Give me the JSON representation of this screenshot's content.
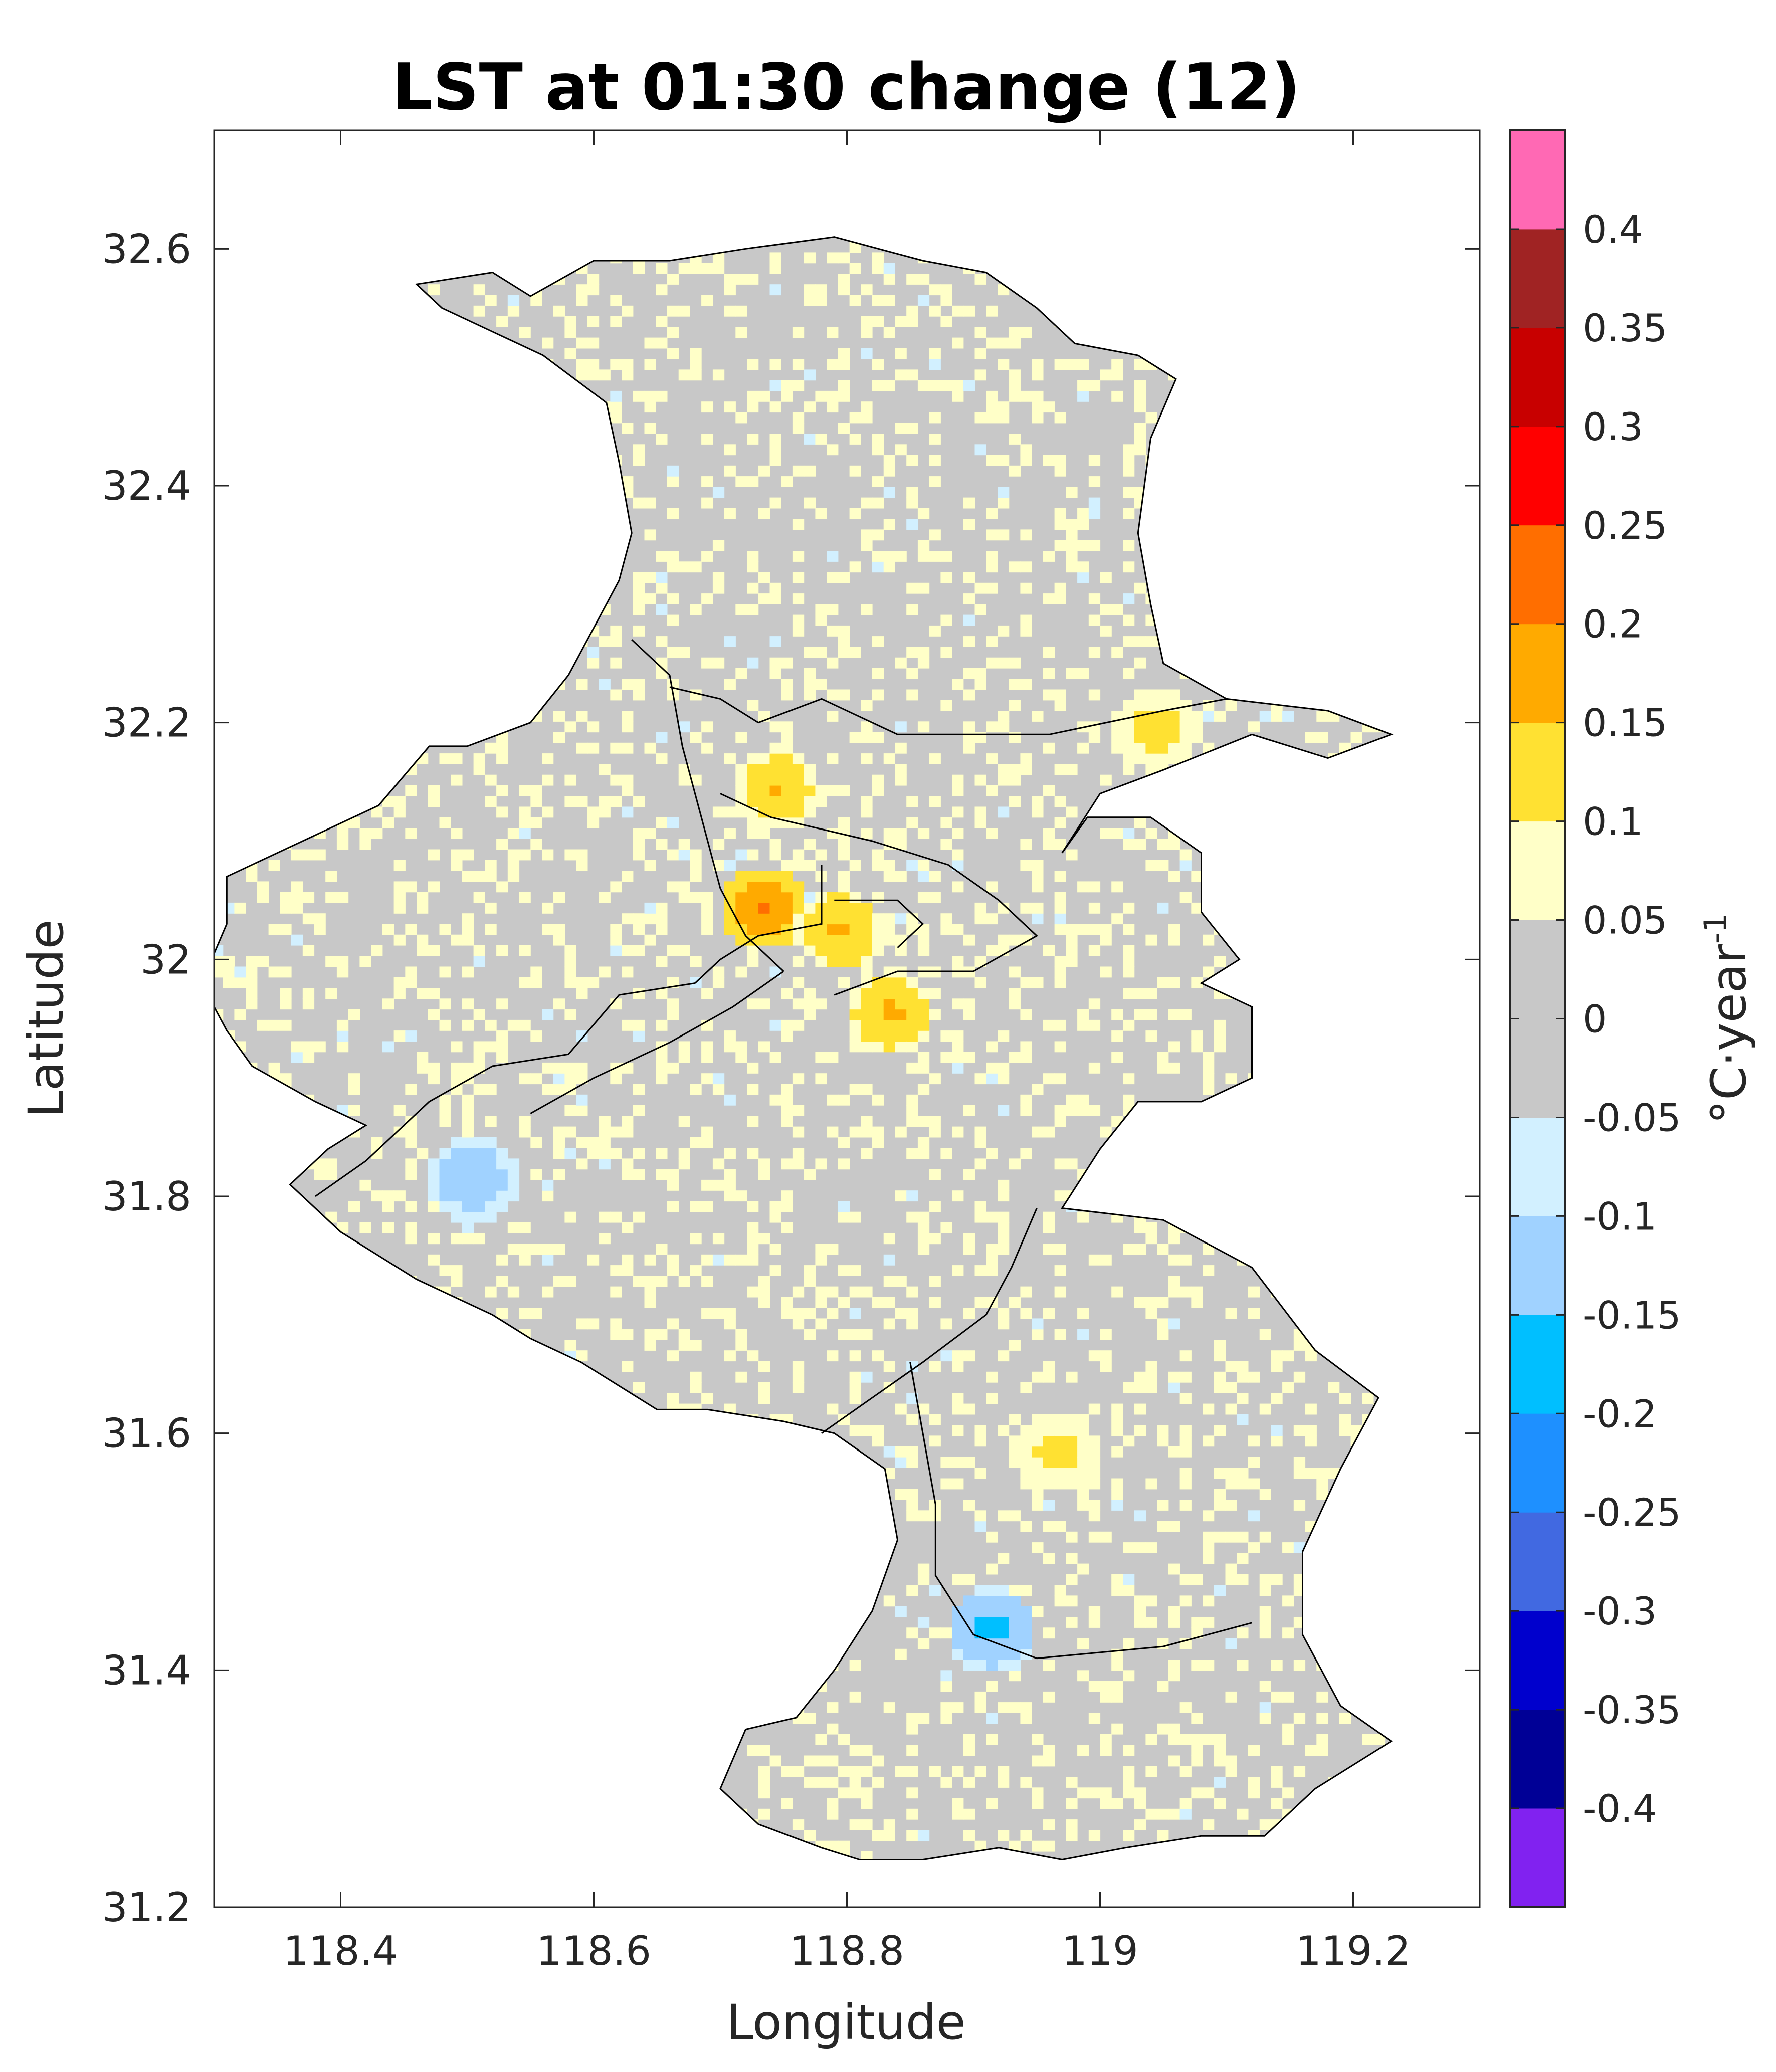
{
  "chart_data": {
    "type": "heatmap",
    "title": "LST at 01:30 change (12)",
    "xlabel": "Longitude",
    "ylabel": "Latitude",
    "xlim": [
      118.3,
      119.3
    ],
    "ylim": [
      31.2,
      32.7
    ],
    "xticks": [
      "118.4",
      "118.6",
      "118.8",
      "119",
      "119.2"
    ],
    "xtick_values": [
      118.4,
      118.6,
      118.8,
      119.0,
      119.2
    ],
    "yticks": [
      "31.2",
      "31.4",
      "31.6",
      "31.8",
      "32",
      "32.2",
      "32.4",
      "32.6"
    ],
    "ytick_values": [
      31.2,
      31.4,
      31.6,
      31.8,
      32.0,
      32.2,
      32.4,
      32.6
    ],
    "colorbar": {
      "label_main": "°C·year",
      "label_sup": "-1",
      "range": [
        -0.45,
        0.45
      ],
      "tick_labels": [
        "-0.4",
        "-0.35",
        "-0.3",
        "-0.25",
        "-0.2",
        "-0.15",
        "-0.1",
        "-0.05",
        "0",
        "0.05",
        "0.1",
        "0.15",
        "0.2",
        "0.25",
        "0.3",
        "0.35",
        "0.4"
      ],
      "tick_values": [
        -0.4,
        -0.35,
        -0.3,
        -0.25,
        -0.2,
        -0.15,
        -0.1,
        -0.05,
        0,
        0.05,
        0.1,
        0.15,
        0.2,
        0.25,
        0.3,
        0.35,
        0.4
      ],
      "bins": [
        {
          "from": -0.45,
          "to": -0.4,
          "color": "#8122F0"
        },
        {
          "from": -0.4,
          "to": -0.35,
          "color": "#000096"
        },
        {
          "from": -0.35,
          "to": -0.3,
          "color": "#0000CD"
        },
        {
          "from": -0.3,
          "to": -0.25,
          "color": "#4169E1"
        },
        {
          "from": -0.25,
          "to": -0.2,
          "color": "#1E90FF"
        },
        {
          "from": -0.2,
          "to": -0.15,
          "color": "#00BFFF"
        },
        {
          "from": -0.15,
          "to": -0.1,
          "color": "#A0D2FF"
        },
        {
          "from": -0.1,
          "to": -0.05,
          "color": "#D2F0FF"
        },
        {
          "from": -0.05,
          "to": 0.05,
          "color": "#C8C8C8"
        },
        {
          "from": 0.05,
          "to": 0.1,
          "color": "#FFFFC8"
        },
        {
          "from": 0.1,
          "to": 0.15,
          "color": "#FFE132"
        },
        {
          "from": 0.15,
          "to": 0.2,
          "color": "#FFAA00"
        },
        {
          "from": 0.2,
          "to": 0.25,
          "color": "#FF6E00"
        },
        {
          "from": 0.25,
          "to": 0.3,
          "color": "#FF0000"
        },
        {
          "from": 0.3,
          "to": 0.35,
          "color": "#C80000"
        },
        {
          "from": 0.35,
          "to": 0.4,
          "color": "#A02323"
        },
        {
          "from": 0.4,
          "to": 0.45,
          "color": "#FF69B4"
        }
      ]
    },
    "region_outline": [
      [
        118.46,
        32.57
      ],
      [
        118.52,
        32.58
      ],
      [
        118.55,
        32.56
      ],
      [
        118.6,
        32.59
      ],
      [
        118.66,
        32.59
      ],
      [
        118.72,
        32.6
      ],
      [
        118.79,
        32.61
      ],
      [
        118.86,
        32.59
      ],
      [
        118.91,
        32.58
      ],
      [
        118.95,
        32.55
      ],
      [
        118.98,
        32.52
      ],
      [
        119.03,
        32.51
      ],
      [
        119.06,
        32.49
      ],
      [
        119.04,
        32.44
      ],
      [
        119.03,
        32.36
      ],
      [
        119.04,
        32.3
      ],
      [
        119.05,
        32.25
      ],
      [
        119.1,
        32.22
      ],
      [
        119.18,
        32.21
      ],
      [
        119.23,
        32.19
      ],
      [
        119.18,
        32.17
      ],
      [
        119.12,
        32.19
      ],
      [
        119.05,
        32.16
      ],
      [
        119.0,
        32.14
      ],
      [
        118.97,
        32.09
      ],
      [
        118.99,
        32.12
      ],
      [
        119.04,
        32.12
      ],
      [
        119.08,
        32.09
      ],
      [
        119.08,
        32.04
      ],
      [
        119.11,
        32.0
      ],
      [
        119.08,
        31.98
      ],
      [
        119.12,
        31.96
      ],
      [
        119.12,
        31.9
      ],
      [
        119.08,
        31.88
      ],
      [
        119.03,
        31.88
      ],
      [
        119.0,
        31.84
      ],
      [
        118.97,
        31.79
      ],
      [
        119.05,
        31.78
      ],
      [
        119.12,
        31.74
      ],
      [
        119.17,
        31.67
      ],
      [
        119.22,
        31.63
      ],
      [
        119.19,
        31.57
      ],
      [
        119.16,
        31.5
      ],
      [
        119.16,
        31.43
      ],
      [
        119.19,
        31.37
      ],
      [
        119.23,
        31.34
      ],
      [
        119.17,
        31.3
      ],
      [
        119.13,
        31.26
      ],
      [
        119.08,
        31.26
      ],
      [
        119.02,
        31.25
      ],
      [
        118.97,
        31.24
      ],
      [
        118.92,
        31.25
      ],
      [
        118.86,
        31.24
      ],
      [
        118.81,
        31.24
      ],
      [
        118.78,
        31.25
      ],
      [
        118.73,
        31.27
      ],
      [
        118.7,
        31.3
      ],
      [
        118.72,
        31.35
      ],
      [
        118.76,
        31.36
      ],
      [
        118.79,
        31.4
      ],
      [
        118.82,
        31.45
      ],
      [
        118.84,
        31.51
      ],
      [
        118.83,
        31.57
      ],
      [
        118.79,
        31.6
      ],
      [
        118.75,
        31.61
      ],
      [
        118.69,
        31.62
      ],
      [
        118.65,
        31.62
      ],
      [
        118.59,
        31.66
      ],
      [
        118.55,
        31.68
      ],
      [
        118.52,
        31.7
      ],
      [
        118.46,
        31.73
      ],
      [
        118.4,
        31.77
      ],
      [
        118.36,
        31.81
      ],
      [
        118.39,
        31.84
      ],
      [
        118.42,
        31.86
      ],
      [
        118.38,
        31.88
      ],
      [
        118.33,
        31.91
      ],
      [
        118.31,
        31.94
      ],
      [
        118.29,
        31.98
      ],
      [
        118.31,
        32.03
      ],
      [
        118.31,
        32.07
      ],
      [
        118.37,
        32.1
      ],
      [
        118.43,
        32.13
      ],
      [
        118.47,
        32.18
      ],
      [
        118.5,
        32.18
      ],
      [
        118.55,
        32.2
      ],
      [
        118.58,
        32.24
      ],
      [
        118.6,
        32.28
      ],
      [
        118.62,
        32.32
      ],
      [
        118.63,
        32.36
      ],
      [
        118.62,
        32.42
      ],
      [
        118.61,
        32.47
      ],
      [
        118.56,
        32.51
      ],
      [
        118.52,
        32.53
      ],
      [
        118.48,
        32.55
      ]
    ],
    "district_lines": [
      [
        [
          118.63,
          32.27
        ],
        [
          118.66,
          32.24
        ],
        [
          118.67,
          32.18
        ],
        [
          118.69,
          32.1
        ],
        [
          118.7,
          32.06
        ],
        [
          118.72,
          32.02
        ],
        [
          118.75,
          31.99
        ]
      ],
      [
        [
          118.66,
          32.23
        ],
        [
          118.7,
          32.22
        ],
        [
          118.73,
          32.2
        ],
        [
          118.78,
          32.22
        ],
        [
          118.84,
          32.19
        ],
        [
          118.96,
          32.19
        ],
        [
          119.05,
          32.21
        ],
        [
          119.1,
          32.22
        ]
      ],
      [
        [
          118.7,
          32.14
        ],
        [
          118.74,
          32.12
        ],
        [
          118.82,
          32.1
        ],
        [
          118.88,
          32.08
        ],
        [
          118.92,
          32.05
        ],
        [
          118.95,
          32.02
        ],
        [
          118.9,
          31.99
        ],
        [
          118.84,
          31.99
        ],
        [
          118.79,
          31.97
        ]
      ],
      [
        [
          118.78,
          32.08
        ],
        [
          118.78,
          32.03
        ],
        [
          118.73,
          32.02
        ],
        [
          118.7,
          32.0
        ],
        [
          118.68,
          31.98
        ]
      ],
      [
        [
          118.79,
          32.05
        ],
        [
          118.84,
          32.05
        ],
        [
          118.86,
          32.03
        ],
        [
          118.84,
          32.01
        ]
      ],
      [
        [
          118.68,
          31.98
        ],
        [
          118.62,
          31.97
        ],
        [
          118.58,
          31.92
        ],
        [
          118.52,
          31.91
        ],
        [
          118.47,
          31.88
        ],
        [
          118.42,
          31.83
        ],
        [
          118.38,
          31.8
        ]
      ],
      [
        [
          118.75,
          31.99
        ],
        [
          118.71,
          31.96
        ],
        [
          118.66,
          31.93
        ],
        [
          118.6,
          31.9
        ],
        [
          118.55,
          31.87
        ]
      ],
      [
        [
          118.95,
          31.79
        ],
        [
          118.93,
          31.74
        ],
        [
          118.91,
          31.7
        ],
        [
          118.86,
          31.66
        ],
        [
          118.82,
          31.63
        ],
        [
          118.78,
          31.6
        ]
      ],
      [
        [
          118.85,
          31.66
        ],
        [
          118.86,
          31.6
        ],
        [
          118.87,
          31.54
        ],
        [
          118.87,
          31.48
        ],
        [
          118.9,
          31.43
        ],
        [
          118.95,
          31.41
        ],
        [
          119.05,
          31.42
        ],
        [
          119.12,
          31.44
        ]
      ]
    ],
    "hotspots": [
      {
        "lon": 118.73,
        "lat": 32.04,
        "value": 0.22
      },
      {
        "lon": 118.79,
        "lat": 32.02,
        "value": 0.17
      },
      {
        "lon": 118.83,
        "lat": 31.95,
        "value": 0.17
      },
      {
        "lon": 118.74,
        "lat": 32.14,
        "value": 0.16
      },
      {
        "lon": 119.04,
        "lat": 32.19,
        "value": 0.14
      },
      {
        "lon": 118.96,
        "lat": 31.58,
        "value": 0.13
      },
      {
        "lon": 118.91,
        "lat": 31.43,
        "value": -0.18
      },
      {
        "lon": 118.5,
        "lat": 31.81,
        "value": -0.16
      }
    ]
  }
}
